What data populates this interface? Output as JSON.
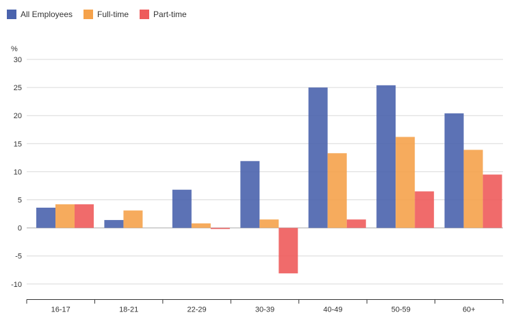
{
  "chart_data": {
    "type": "bar",
    "ylabel": "%",
    "ylim": [
      -13,
      30
    ],
    "yticks": [
      30,
      25,
      20,
      15,
      10,
      5,
      0,
      -5,
      -10
    ],
    "categories": [
      "16-17",
      "18-21",
      "22-29",
      "30-39",
      "40-49",
      "50-59",
      "60+"
    ],
    "series": [
      {
        "name": "All Employees",
        "color": "#4a63ad",
        "values": [
          3.6,
          1.4,
          6.8,
          11.9,
          25.0,
          25.4,
          20.4
        ]
      },
      {
        "name": "Full-time",
        "color": "#f5a24b",
        "values": [
          4.2,
          3.1,
          0.8,
          1.5,
          13.3,
          16.2,
          13.9
        ]
      },
      {
        "name": "Part-time",
        "color": "#ee5b5b",
        "values": [
          4.2,
          0.0,
          -0.2,
          -8.1,
          1.5,
          6.5,
          9.5
        ]
      }
    ],
    "grid": true,
    "legend_position": "top-left"
  }
}
